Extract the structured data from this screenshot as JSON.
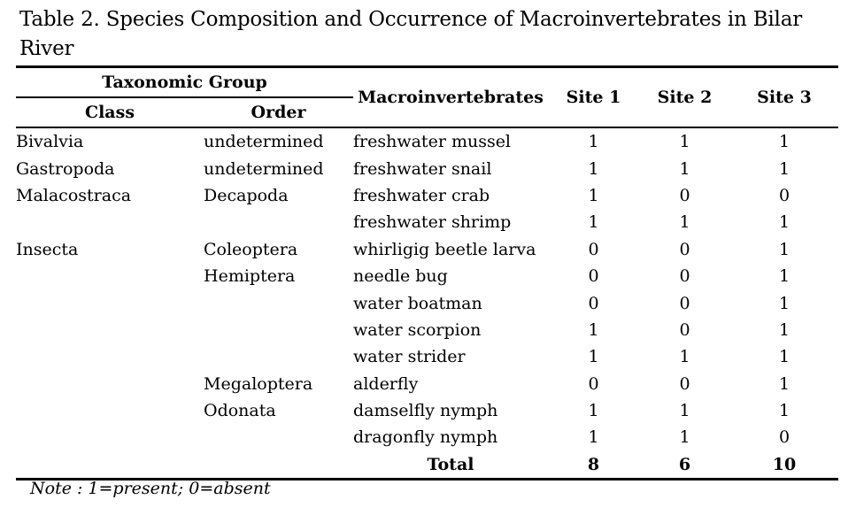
{
  "caption": "Table 2. Species Composition and Occurrence of Macroinvertebrates in Bilar River",
  "headers": {
    "taxonomic_group": "Taxonomic Group",
    "class": "Class",
    "order": "Order",
    "macroinvertebrates": "Macroinvertebrates",
    "site1": "Site 1",
    "site2": "Site 2",
    "site3": "Site 3"
  },
  "rows": [
    {
      "class": "Bivalvia",
      "order": "undetermined",
      "macro": "freshwater mussel",
      "s1": "1",
      "s2": "1",
      "s3": "1"
    },
    {
      "class": "Gastropoda",
      "order": "undetermined",
      "macro": "freshwater snail",
      "s1": "1",
      "s2": "1",
      "s3": "1"
    },
    {
      "class": "Malacostraca",
      "order": "Decapoda",
      "macro": "freshwater crab",
      "s1": "1",
      "s2": "0",
      "s3": "0"
    },
    {
      "class": "",
      "order": "",
      "macro": "freshwater shrimp",
      "s1": "1",
      "s2": "1",
      "s3": "1"
    },
    {
      "class": "Insecta",
      "order": "Coleoptera",
      "macro": "whirligig beetle larva",
      "s1": "0",
      "s2": "0",
      "s3": "1"
    },
    {
      "class": "",
      "order": "Hemiptera",
      "macro": "needle bug",
      "s1": "0",
      "s2": "0",
      "s3": "1"
    },
    {
      "class": "",
      "order": "",
      "macro": "water boatman",
      "s1": "0",
      "s2": "0",
      "s3": "1"
    },
    {
      "class": "",
      "order": "",
      "macro": "water scorpion",
      "s1": "1",
      "s2": "0",
      "s3": "1"
    },
    {
      "class": "",
      "order": "",
      "macro": "water strider",
      "s1": "1",
      "s2": "1",
      "s3": "1"
    },
    {
      "class": "",
      "order": "Megaloptera",
      "macro": "alderfly",
      "s1": "0",
      "s2": "0",
      "s3": "1"
    },
    {
      "class": "",
      "order": "Odonata",
      "macro": "damselfly nymph",
      "s1": "1",
      "s2": "1",
      "s3": "1"
    },
    {
      "class": "",
      "order": "",
      "macro": "dragonfly nymph",
      "s1": "1",
      "s2": "1",
      "s3": "0"
    }
  ],
  "total": {
    "label": "Total",
    "s1": "8",
    "s2": "6",
    "s3": "10"
  },
  "note": "Note : 1=present; 0=absent"
}
